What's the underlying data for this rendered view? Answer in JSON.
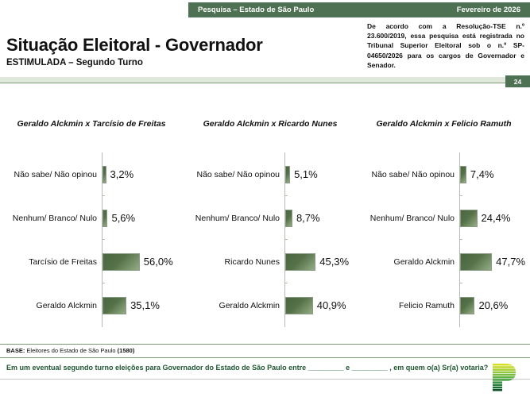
{
  "header_bar": {
    "left": "Pesquisa – Estado de São Paulo",
    "right": "Fevereiro de 2026"
  },
  "title": "Situação Eleitoral - Governador",
  "subtitle": "ESTIMULADA – Segundo Turno",
  "disclaimer": "De acordo com a Resolução-TSE n.º 23.600/2019, essa pesquisa está registrada no Tribunal Superior Eleitoral sob o n.º SP-04650/2026 para os cargos de Governador e Senador.",
  "page_number": "24",
  "chart_data": [
    {
      "type": "bar",
      "orientation": "horizontal",
      "title": "Geraldo Alckmin x Tarcísio de Freitas",
      "categories": [
        "Não sabe/ Não opinou",
        "Nenhum/ Branco/ Nulo",
        "Tarcísio de Freitas",
        "Geraldo Alckmin"
      ],
      "values": [
        3.2,
        5.6,
        56.0,
        35.1
      ],
      "value_labels": [
        "3,2%",
        "5,6%",
        "56,0%",
        "35,1%"
      ],
      "xlim": [
        0,
        70
      ],
      "grid": false,
      "legend": false
    },
    {
      "type": "bar",
      "orientation": "horizontal",
      "title": "Geraldo Alckmin x Ricardo Nunes",
      "categories": [
        "Não sabe/ Não opinou",
        "Nenhum/ Branco/ Nulo",
        "Ricardo Nunes",
        "Geraldo Alckmin"
      ],
      "values": [
        5.1,
        8.7,
        45.3,
        40.9
      ],
      "value_labels": [
        "5,1%",
        "8,7%",
        "45,3%",
        "40,9%"
      ],
      "xlim": [
        0,
        70
      ],
      "grid": false,
      "legend": false
    },
    {
      "type": "bar",
      "orientation": "horizontal",
      "title": "Geraldo Alckmin x Felicio Ramuth",
      "categories": [
        "Não sabe/ Não opinou",
        "Nenhum/ Branco/ Nulo",
        "Geraldo Alckmin",
        "Felicio Ramuth"
      ],
      "values": [
        7.4,
        24.4,
        47.7,
        20.6
      ],
      "value_labels": [
        "7,4%",
        "24,4%",
        "47,7%",
        "20,6%"
      ],
      "xlim": [
        0,
        70
      ],
      "grid": false,
      "legend": false
    }
  ],
  "footer": {
    "base_label": "BASE:",
    "base_text": " Eleitores do Estado de São Paulo ",
    "base_count": "(1580)",
    "question": "Em um eventual segundo turno eleições para Governador do Estado de São Paulo entre _________ e _________ , em quem o(a) Sr(a) votaria?"
  },
  "colors": {
    "header_green": "#4d7152",
    "band_green": "#dfe8da",
    "bar_dark": "#49663f",
    "bar_light": "#94ad85",
    "question_green": "#1c5730"
  },
  "logo": {
    "name": "striped-p-logo",
    "stripe_colors": [
      "#d7df23",
      "#c3d82e",
      "#abd037",
      "#93c83e",
      "#7bbd42",
      "#63b044",
      "#4ba145",
      "#379242",
      "#27823c",
      "#186b31",
      "#114f25"
    ]
  }
}
